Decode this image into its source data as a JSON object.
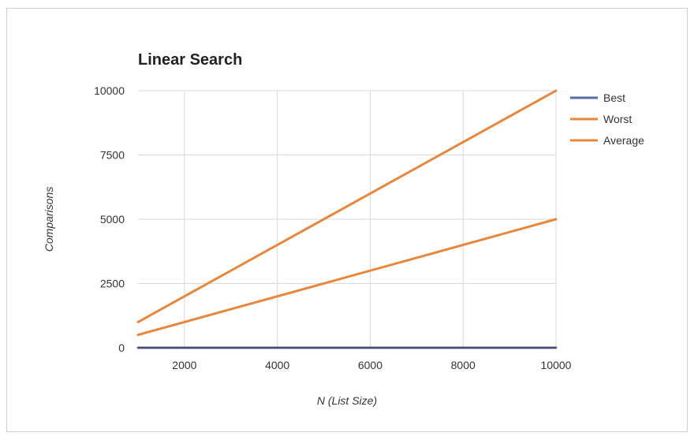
{
  "chart_data": {
    "type": "line",
    "title": "Linear Search",
    "xlabel": "N (List Size)",
    "ylabel": "Comparisons",
    "xlim": [
      1000,
      10000
    ],
    "ylim": [
      0,
      10000
    ],
    "x_ticks": [
      2000,
      4000,
      6000,
      8000,
      10000
    ],
    "y_ticks": [
      0,
      2500,
      5000,
      7500,
      10000
    ],
    "x_tick_labels": [
      "2000",
      "4000",
      "6000",
      "8000",
      "10000"
    ],
    "y_tick_labels": [
      "0",
      "2500",
      "5000",
      "7500",
      "10000"
    ],
    "grid": true,
    "legend_position": "right",
    "x": [
      1000,
      10000
    ],
    "series": [
      {
        "name": "Best",
        "color": "#5b6aa8",
        "values": [
          1,
          1
        ]
      },
      {
        "name": "Worst",
        "color": "#e8863c",
        "values": [
          1000,
          10000
        ]
      },
      {
        "name": "Average",
        "color": "#e8863c",
        "values": [
          500,
          5000
        ]
      }
    ]
  }
}
